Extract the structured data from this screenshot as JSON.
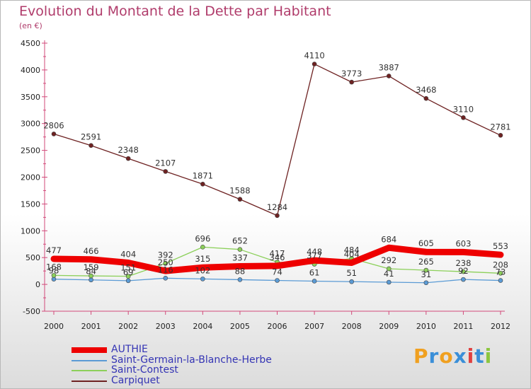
{
  "chart_title": "Evolution du Montant de la Dette par Habitant",
  "chart_subtitle": "(en €)",
  "brand": {
    "letters": [
      "P",
      "r",
      "o",
      "x",
      "i",
      "t",
      "i"
    ],
    "colors": [
      "#f0a020",
      "#3a8fd8",
      "#f0a020",
      "#3a8fd8",
      "#e04040",
      "#3a8fd8",
      "#8cc63f"
    ]
  },
  "chart_data": {
    "type": "line",
    "x": [
      "2000",
      "2001",
      "2002",
      "2003",
      "2004",
      "2005",
      "2006",
      "2007",
      "2008",
      "2009",
      "2010",
      "2011",
      "2012"
    ],
    "ylim": [
      -500,
      4500
    ],
    "yticks": [
      "-500",
      "0",
      "500",
      "1000",
      "1500",
      "2000",
      "2500",
      "3000",
      "3500",
      "4000",
      "4500"
    ],
    "grid": false,
    "legend_position": "bottom-left",
    "series": [
      {
        "name": "AUTHIE",
        "color": "#ee0000",
        "values": [
          477,
          466,
          404,
          250,
          315,
          337,
          346,
          448,
          404,
          684,
          605,
          603,
          553
        ],
        "labels": [
          "477",
          "466",
          "404",
          "250",
          "315",
          "337",
          "346",
          "448",
          "404",
          "684",
          "605",
          "603",
          "553"
        ]
      },
      {
        "name": "Saint-Germain-la-Blanche-Herbe",
        "color": "#5b9bd5",
        "values": [
          98,
          84,
          69,
          116,
          102,
          88,
          74,
          61,
          51,
          41,
          31,
          92,
          73
        ],
        "labels": [
          "98",
          "84",
          "69",
          "116",
          "102",
          "88",
          "74",
          "61",
          "51",
          "41",
          "31",
          "92",
          "73"
        ]
      },
      {
        "name": "Saint-Contest",
        "color": "#8cd05a",
        "values": [
          168,
          159,
          151,
          392,
          696,
          652,
          417,
          377,
          484,
          292,
          265,
          238,
          208
        ],
        "labels": [
          "168",
          "159",
          "151",
          "392",
          "696",
          "652",
          "417",
          "377",
          "484",
          "292",
          "265",
          "238",
          "208"
        ]
      },
      {
        "name": "Carpiquet",
        "color": "#6e2222",
        "values": [
          2806,
          2591,
          2348,
          2107,
          1871,
          1588,
          1284,
          4110,
          3773,
          3887,
          3468,
          3110,
          2781
        ],
        "labels": [
          "2806",
          "2591",
          "2348",
          "2107",
          "1871",
          "1588",
          "1284",
          "4110",
          "3773",
          "3887",
          "3468",
          "3110",
          "2781"
        ]
      }
    ]
  }
}
